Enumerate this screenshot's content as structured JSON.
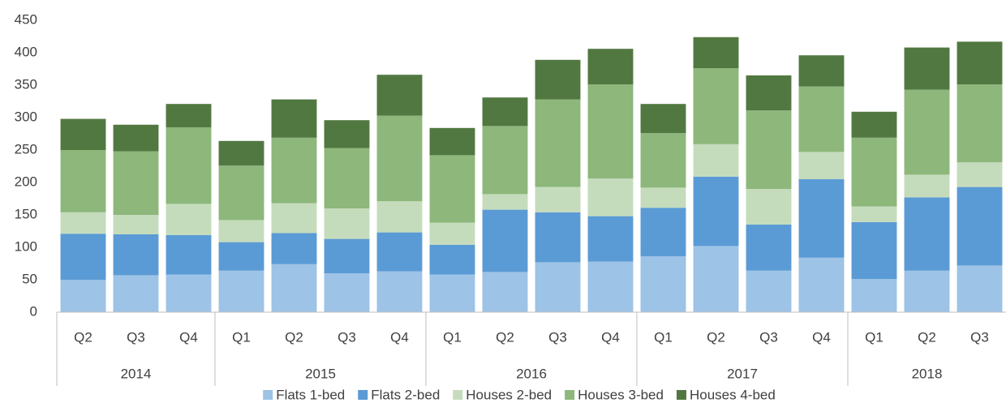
{
  "chart_data": {
    "type": "stacked_bar",
    "groups": [
      {
        "name": "2014",
        "quarters": [
          "Q2",
          "Q3",
          "Q4"
        ]
      },
      {
        "name": "2015",
        "quarters": [
          "Q1",
          "Q2",
          "Q3",
          "Q4"
        ]
      },
      {
        "name": "2016",
        "quarters": [
          "Q1",
          "Q2",
          "Q3",
          "Q4"
        ]
      },
      {
        "name": "2017",
        "quarters": [
          "Q1",
          "Q2",
          "Q3",
          "Q4"
        ]
      },
      {
        "name": "2018",
        "quarters": [
          "Q1",
          "Q2",
          "Q3"
        ]
      }
    ],
    "series": [
      {
        "name": "Flats 1-bed",
        "color": "#9dc3e6",
        "values": [
          50,
          57,
          58,
          64,
          74,
          60,
          63,
          58,
          62,
          77,
          78,
          86,
          102,
          64,
          84,
          51,
          64,
          72
        ]
      },
      {
        "name": "Flats 2-bed",
        "color": "#5b9bd5",
        "values": [
          71,
          63,
          61,
          44,
          48,
          53,
          60,
          46,
          96,
          77,
          70,
          75,
          107,
          71,
          121,
          88,
          113,
          121
        ]
      },
      {
        "name": "Houses 2-bed",
        "color": "#c5dcbc",
        "values": [
          33,
          30,
          48,
          34,
          46,
          47,
          48,
          34,
          24,
          39,
          58,
          31,
          50,
          55,
          42,
          24,
          35,
          38
        ]
      },
      {
        "name": "Houses 3-bed",
        "color": "#8db77b",
        "values": [
          96,
          98,
          118,
          84,
          101,
          93,
          132,
          104,
          105,
          135,
          145,
          84,
          117,
          121,
          101,
          106,
          131,
          120
        ]
      },
      {
        "name": "Houses 4-bed",
        "color": "#527841",
        "values": [
          48,
          41,
          36,
          38,
          59,
          43,
          63,
          42,
          44,
          61,
          55,
          45,
          48,
          54,
          48,
          40,
          65,
          66
        ]
      }
    ],
    "ylim": [
      0,
      450
    ],
    "yticks": [
      0,
      50,
      100,
      150,
      200,
      250,
      300,
      350,
      400,
      450
    ],
    "legend": "bottom"
  }
}
